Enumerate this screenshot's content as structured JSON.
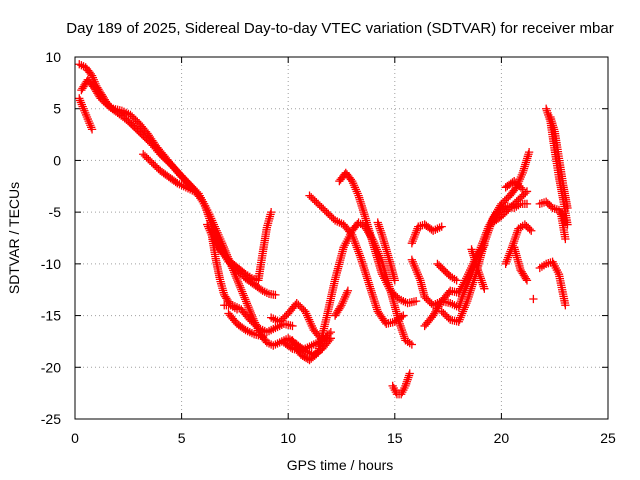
{
  "chart_data": {
    "type": "scatter",
    "title": "Day 189 of 2025, Sidereal Day-to-day VTEC variation (SDTVAR) for receiver mbar",
    "xlabel": "GPS time / hours",
    "ylabel": "SDTVAR / TECUs",
    "xlim": [
      0,
      25
    ],
    "ylim": [
      -25,
      10
    ],
    "xticks": [
      0,
      5,
      10,
      15,
      20,
      25
    ],
    "yticks": [
      -25,
      -20,
      -15,
      -10,
      -5,
      0,
      5,
      10
    ],
    "grid": true,
    "marker": "plus",
    "color": "#ff0000",
    "tracks": [
      {
        "x": [
          0.2,
          0.5,
          0.8,
          1.0,
          1.3,
          1.6,
          2.0,
          2.5,
          3.0,
          3.5,
          4.0,
          4.5,
          5.0,
          5.5,
          6.0,
          6.3,
          6.6,
          6.9,
          7.2,
          7.5,
          7.8,
          8.1,
          8.4,
          8.7,
          9.0,
          9.3,
          9.6,
          10.0,
          10.4,
          10.8,
          11.2,
          11.6,
          12.0
        ],
        "y": [
          9.3,
          9.0,
          8.2,
          7.2,
          6.2,
          5.2,
          4.6,
          3.8,
          2.8,
          1.8,
          0.6,
          -0.4,
          -1.5,
          -2.6,
          -4.0,
          -5.2,
          -6.6,
          -8.0,
          -9.5,
          -11.0,
          -12.5,
          -14.0,
          -15.5,
          -16.8,
          -17.6,
          -17.9,
          -17.6,
          -17.2,
          -17.8,
          -18.4,
          -18.8,
          -18.2,
          -17.2
        ]
      },
      {
        "x": [
          0.3,
          0.6,
          0.9,
          1.2,
          1.5,
          1.8,
          2.2,
          2.6,
          3.0,
          3.4,
          3.8,
          4.2,
          4.6,
          5.0,
          5.4,
          5.8,
          6.1,
          6.4,
          6.8,
          7.2,
          7.6,
          8.0,
          8.4,
          8.8,
          9.1,
          9.4
        ],
        "y": [
          6.8,
          7.8,
          7.0,
          6.0,
          5.4,
          5.0,
          4.8,
          4.4,
          3.6,
          2.6,
          1.4,
          0.4,
          -0.6,
          -1.6,
          -2.4,
          -3.2,
          -4.4,
          -6.2,
          -8.5,
          -9.8,
          -10.6,
          -11.4,
          -12.0,
          -12.6,
          -12.9,
          -13.0
        ]
      },
      {
        "x": [
          0.2,
          0.4,
          0.6,
          0.8
        ],
        "y": [
          6.0,
          5.0,
          4.0,
          3.0
        ]
      },
      {
        "x": [
          3.2,
          3.6,
          4.0,
          4.4,
          4.8,
          5.2,
          5.6
        ],
        "y": [
          0.6,
          -0.2,
          -1.0,
          -1.6,
          -2.2,
          -2.6,
          -3.0
        ]
      },
      {
        "x": [
          6.2,
          6.5,
          6.8,
          7.1,
          7.4,
          7.7,
          8.0,
          8.3,
          8.6,
          8.8,
          9.0,
          9.2
        ],
        "y": [
          -6.2,
          -7.6,
          -8.6,
          -9.4,
          -10.0,
          -10.5,
          -11.0,
          -11.4,
          -11.6,
          -9.0,
          -6.5,
          -5.0
        ]
      },
      {
        "x": [
          6.4,
          6.6,
          6.8,
          7.0,
          7.3,
          7.6
        ],
        "y": [
          -7.0,
          -9.5,
          -11.5,
          -13.0,
          -14.0,
          -14.4
        ]
      },
      {
        "x": [
          7.0,
          7.4,
          7.8,
          8.2,
          8.6,
          9.0,
          9.4,
          9.8,
          10.2
        ],
        "y": [
          -14.0,
          -14.0,
          -14.4,
          -15.4,
          -16.2,
          -16.6,
          -16.2,
          -15.8,
          -16.0
        ]
      },
      {
        "x": [
          7.2,
          7.6,
          8.0,
          8.4,
          8.8
        ],
        "y": [
          -14.8,
          -15.8,
          -16.4,
          -16.8,
          -17.0
        ]
      },
      {
        "x": [
          9.2,
          9.6,
          10.0,
          10.4,
          10.8,
          11.2,
          11.6,
          12.0
        ],
        "y": [
          -15.2,
          -15.6,
          -14.8,
          -13.8,
          -14.6,
          -16.4,
          -17.4,
          -16.6
        ]
      },
      {
        "x": [
          9.8,
          10.2,
          10.6,
          11.0,
          11.4,
          11.8
        ],
        "y": [
          -17.6,
          -18.2,
          -18.4,
          -18.0,
          -17.6,
          -17.2
        ]
      },
      {
        "x": [
          10.2,
          10.6,
          11.0,
          11.4,
          11.8,
          12.2,
          12.6,
          13.0,
          13.3,
          13.6,
          14.0,
          14.4,
          14.8,
          15.2,
          15.5,
          15.8
        ],
        "y": [
          -17.4,
          -18.8,
          -19.3,
          -18.6,
          -15.2,
          -11.5,
          -8.4,
          -6.8,
          -6.0,
          -6.4,
          -7.8,
          -9.8,
          -12.6,
          -15.6,
          -17.4,
          -17.8
        ]
      },
      {
        "x": [
          11.0,
          11.4,
          11.8,
          12.2,
          12.6,
          13.0,
          13.4,
          13.8,
          14.2,
          14.6,
          15.0,
          15.4
        ],
        "y": [
          -3.4,
          -4.2,
          -5.0,
          -5.8,
          -6.2,
          -7.2,
          -9.4,
          -12.0,
          -14.6,
          -15.8,
          -15.6,
          -15.0
        ]
      },
      {
        "x": [
          12.4,
          12.7,
          13.0,
          13.3,
          13.6,
          14.0,
          14.4,
          14.8,
          15.2,
          15.6,
          16.0
        ],
        "y": [
          -2.0,
          -1.2,
          -2.0,
          -3.4,
          -5.4,
          -8.2,
          -11.0,
          -12.6,
          -13.4,
          -13.8,
          -13.6
        ]
      },
      {
        "x": [
          12.2,
          12.5,
          12.8
        ],
        "y": [
          -15.0,
          -14.0,
          -12.6
        ]
      },
      {
        "x": [
          14.2,
          14.4,
          14.6,
          14.8,
          15.0
        ],
        "y": [
          -6.0,
          -7.2,
          -8.6,
          -10.0,
          -11.6
        ]
      },
      {
        "x": [
          14.9,
          15.1,
          15.3,
          15.5,
          15.7
        ],
        "y": [
          -21.8,
          -22.6,
          -22.6,
          -21.8,
          -20.6
        ]
      },
      {
        "x": [
          15.8,
          16.0,
          16.2,
          16.4,
          16.8,
          17.2,
          17.6,
          18.0,
          18.2,
          18.6,
          19.0,
          19.4,
          19.8,
          20.2,
          20.6,
          20.9,
          21.2
        ],
        "y": [
          -9.6,
          -10.6,
          -11.6,
          -13.2,
          -14.0,
          -13.6,
          -13.8,
          -14.2,
          -13.0,
          -11.0,
          -8.6,
          -6.4,
          -5.0,
          -4.4,
          -4.6,
          -4.2,
          -4.2
        ]
      },
      {
        "x": [
          15.8,
          16.1,
          16.4,
          16.8,
          17.2
        ],
        "y": [
          -8.0,
          -6.4,
          -6.2,
          -6.8,
          -6.4
        ]
      },
      {
        "x": [
          16.4,
          16.8,
          17.2,
          17.6,
          18.0,
          18.4,
          18.8,
          19.2
        ],
        "y": [
          -16.0,
          -15.0,
          -13.6,
          -12.6,
          -12.8,
          -11.2,
          -9.4,
          -8.2
        ]
      },
      {
        "x": [
          17.0,
          17.3,
          17.6,
          17.9
        ],
        "y": [
          -10.0,
          -10.6,
          -11.2,
          -11.6
        ]
      },
      {
        "x": [
          17.2,
          17.6,
          18.0,
          18.4,
          18.8,
          19.2,
          19.6,
          20.0,
          20.4,
          20.7,
          21.0,
          21.3
        ],
        "y": [
          -14.6,
          -15.4,
          -15.6,
          -13.6,
          -11.0,
          -8.0,
          -5.6,
          -4.2,
          -3.4,
          -2.6,
          -1.2,
          0.8
        ]
      },
      {
        "x": [
          18.6,
          18.9,
          19.2
        ],
        "y": [
          -8.6,
          -10.6,
          -12.4
        ]
      },
      {
        "x": [
          19.6,
          20.0,
          20.4,
          20.8,
          21.2
        ],
        "y": [
          -6.0,
          -5.4,
          -4.6,
          -3.8,
          -3.0
        ]
      },
      {
        "x": [
          20.2,
          20.5,
          20.8,
          21.1,
          21.4
        ],
        "y": [
          -10.0,
          -8.4,
          -6.6,
          -6.2,
          -6.8
        ]
      },
      {
        "x": [
          20.6,
          20.9,
          21.2
        ],
        "y": [
          -8.4,
          -10.6,
          -11.6
        ]
      },
      {
        "x": [
          20.2,
          20.6,
          21.0
        ],
        "y": [
          -2.6,
          -2.0,
          -2.8
        ]
      },
      {
        "x": [
          21.5
        ],
        "y": [
          -13.4
        ]
      },
      {
        "x": [
          21.8,
          22.1,
          22.4,
          22.7,
          23.0
        ],
        "y": [
          -4.2,
          -4.0,
          -4.6,
          -4.8,
          -6.0
        ]
      },
      {
        "x": [
          22.1,
          22.3,
          22.5,
          22.7,
          22.9,
          23.1
        ],
        "y": [
          5.0,
          3.8,
          1.0,
          -1.6,
          -3.8,
          -6.2
        ]
      },
      {
        "x": [
          22.3,
          22.5,
          22.7,
          22.9,
          23.1
        ],
        "y": [
          4.2,
          2.8,
          0.2,
          -2.4,
          -4.6
        ]
      },
      {
        "x": [
          21.8,
          22.1,
          22.4,
          22.7,
          23.0
        ],
        "y": [
          -10.4,
          -10.0,
          -9.8,
          -11.0,
          -14.0
        ]
      },
      {
        "x": [
          22.8,
          23.0
        ],
        "y": [
          -5.2,
          -7.6
        ]
      }
    ]
  }
}
